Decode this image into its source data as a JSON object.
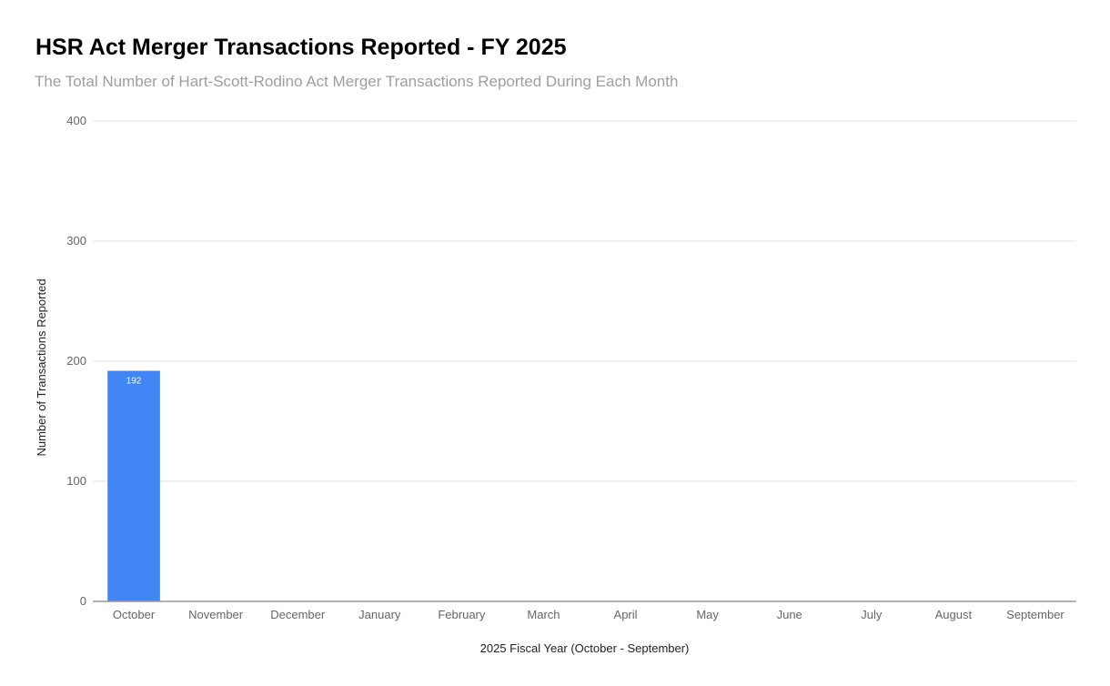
{
  "chart_data": {
    "type": "bar",
    "title": "HSR Act Merger Transactions Reported - FY 2025",
    "subtitle": "The Total Number of Hart-Scott-Rodino Act Merger Transactions Reported During Each Month",
    "xlabel": "2025 Fiscal Year (October - September)",
    "ylabel": "Number of Transactions Reported",
    "categories": [
      "October",
      "November",
      "December",
      "January",
      "February",
      "March",
      "April",
      "May",
      "June",
      "July",
      "August",
      "September"
    ],
    "values": [
      192,
      null,
      null,
      null,
      null,
      null,
      null,
      null,
      null,
      null,
      null,
      null
    ],
    "data_labels": [
      "192",
      "",
      "",
      "",
      "",
      "",
      "",
      "",
      "",
      "",
      "",
      ""
    ],
    "ylim": [
      0,
      400
    ],
    "yticks": [
      0,
      100,
      200,
      300,
      400
    ],
    "grid": true,
    "legend": "none",
    "bar_color": "#4285f4"
  }
}
